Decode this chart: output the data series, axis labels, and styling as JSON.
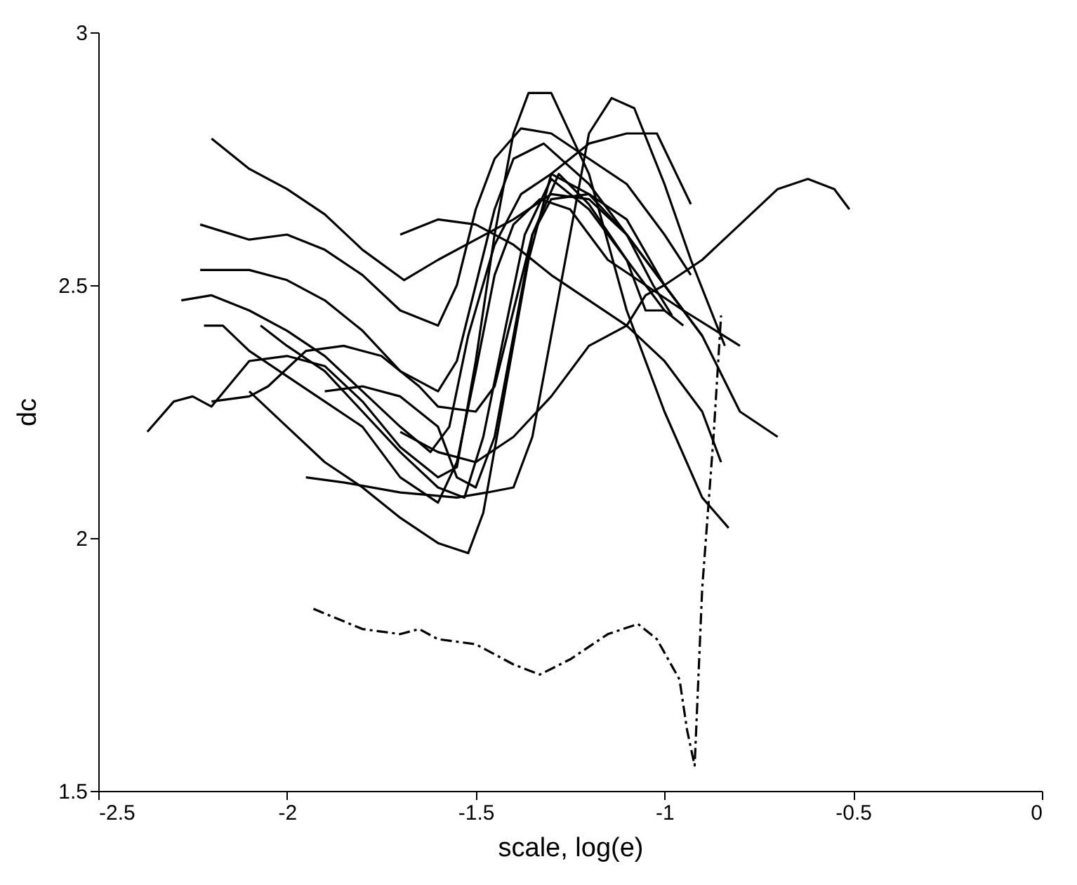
{
  "chart_data": {
    "type": "line",
    "xlabel": "scale, log(e)",
    "ylabel": "dc",
    "xlim": [
      -2.5,
      0
    ],
    "xticks": [
      -2.5,
      -2,
      -1.5,
      -1,
      -0.5,
      0
    ],
    "ylim": [
      1.5,
      3
    ],
    "yticks": [
      1.5,
      2,
      2.5,
      3
    ],
    "series": [
      {
        "color": "#000000",
        "x": [
          -2.2,
          -2.1,
          -2.0,
          -1.9,
          -1.8,
          -1.69,
          -1.6,
          -1.5,
          -1.4,
          -1.3,
          -1.2,
          -1.1,
          -1.03,
          -0.98
        ],
        "values": [
          2.79,
          2.73,
          2.69,
          2.64,
          2.57,
          2.51,
          2.55,
          2.59,
          2.63,
          2.68,
          2.67,
          2.6,
          2.5,
          2.44
        ]
      },
      {
        "color": "#000000",
        "x": [
          -2.23,
          -2.1,
          -2.0,
          -1.9,
          -1.8,
          -1.7,
          -1.6,
          -1.55,
          -1.5,
          -1.45,
          -1.38,
          -1.3,
          -1.2,
          -1.1,
          -1.0,
          -0.93
        ],
        "values": [
          2.62,
          2.59,
          2.6,
          2.57,
          2.52,
          2.45,
          2.42,
          2.5,
          2.65,
          2.75,
          2.81,
          2.8,
          2.75,
          2.7,
          2.6,
          2.52
        ]
      },
      {
        "color": "#000000",
        "x": [
          -2.23,
          -2.1,
          -2.0,
          -1.9,
          -1.8,
          -1.7,
          -1.6,
          -1.55,
          -1.5,
          -1.45,
          -1.4,
          -1.32,
          -1.2,
          -1.1,
          -1.0,
          -0.9,
          -0.8,
          -0.7
        ],
        "values": [
          2.53,
          2.53,
          2.51,
          2.47,
          2.41,
          2.33,
          2.29,
          2.35,
          2.5,
          2.65,
          2.75,
          2.78,
          2.7,
          2.6,
          2.5,
          2.4,
          2.25,
          2.2
        ]
      },
      {
        "color": "#000000",
        "x": [
          -2.28,
          -2.2,
          -2.1,
          -2.0,
          -1.9,
          -1.8,
          -1.7,
          -1.62,
          -1.57,
          -1.52,
          -1.45,
          -1.38,
          -1.3,
          -1.2,
          -1.1,
          -1.0,
          -0.95
        ],
        "values": [
          2.47,
          2.48,
          2.45,
          2.41,
          2.36,
          2.29,
          2.22,
          2.17,
          2.22,
          2.4,
          2.58,
          2.68,
          2.72,
          2.68,
          2.6,
          2.5,
          2.45
        ]
      },
      {
        "color": "#000000",
        "x": [
          -2.22,
          -2.17,
          -2.1,
          -2.0,
          -1.9,
          -1.8,
          -1.7,
          -1.6,
          -1.55,
          -1.5,
          -1.45,
          -1.4,
          -1.33,
          -1.25,
          -1.15,
          -1.05,
          -0.95,
          -0.8
        ],
        "values": [
          2.42,
          2.42,
          2.37,
          2.32,
          2.27,
          2.22,
          2.12,
          2.07,
          2.15,
          2.33,
          2.52,
          2.62,
          2.67,
          2.65,
          2.55,
          2.5,
          2.45,
          2.38
        ]
      },
      {
        "color": "#000000",
        "x": [
          -2.07,
          -2.0,
          -1.9,
          -1.8,
          -1.7,
          -1.6,
          -1.53,
          -1.48,
          -1.42,
          -1.37,
          -1.3,
          -1.2,
          -1.1,
          -1.0,
          -0.95
        ],
        "values": [
          2.42,
          2.38,
          2.33,
          2.25,
          2.17,
          2.1,
          2.08,
          2.2,
          2.42,
          2.6,
          2.71,
          2.65,
          2.55,
          2.45,
          2.42
        ]
      },
      {
        "color": "#000000",
        "x": [
          -2.37,
          -2.3,
          -2.25,
          -2.2,
          -2.1,
          -2.0,
          -1.9,
          -1.8,
          -1.7,
          -1.6,
          -1.55,
          -1.5,
          -1.45,
          -1.4,
          -1.36,
          -1.3,
          -1.2,
          -1.1,
          -1.0,
          -0.9,
          -0.83
        ],
        "values": [
          2.21,
          2.27,
          2.28,
          2.26,
          2.35,
          2.36,
          2.34,
          2.27,
          2.18,
          2.12,
          2.14,
          2.35,
          2.6,
          2.8,
          2.88,
          2.88,
          2.72,
          2.45,
          2.25,
          2.08,
          2.02
        ]
      },
      {
        "color": "#000000",
        "x": [
          -2.2,
          -2.1,
          -2.05,
          -1.95,
          -1.85,
          -1.75,
          -1.65,
          -1.6,
          -1.5,
          -1.45,
          -1.4,
          -1.35,
          -1.3,
          -1.2,
          -1.1,
          -1.0,
          -0.9
        ],
        "values": [
          2.27,
          2.28,
          2.3,
          2.37,
          2.38,
          2.36,
          2.3,
          2.26,
          2.25,
          2.3,
          2.45,
          2.6,
          2.67,
          2.68,
          2.63,
          2.5,
          2.4
        ]
      },
      {
        "color": "#000000",
        "x": [
          -2.1,
          -2.0,
          -1.9,
          -1.8,
          -1.7,
          -1.6,
          -1.52,
          -1.48,
          -1.42,
          -1.36,
          -1.3,
          -1.2,
          -1.1,
          -1.02,
          -0.93
        ],
        "values": [
          2.29,
          2.22,
          2.15,
          2.1,
          2.04,
          1.99,
          1.97,
          2.05,
          2.3,
          2.55,
          2.72,
          2.78,
          2.8,
          2.8,
          2.66
        ]
      },
      {
        "color": "#000000",
        "x": [
          -1.95,
          -1.85,
          -1.7,
          -1.55,
          -1.47,
          -1.4,
          -1.35,
          -1.3,
          -1.25,
          -1.2,
          -1.14,
          -1.08,
          -1.0,
          -0.93,
          -0.84
        ],
        "values": [
          2.12,
          2.11,
          2.09,
          2.08,
          2.09,
          2.1,
          2.2,
          2.4,
          2.6,
          2.8,
          2.87,
          2.85,
          2.7,
          2.55,
          2.38
        ]
      },
      {
        "color": "#000000",
        "x": [
          -1.7,
          -1.6,
          -1.5,
          -1.4,
          -1.3,
          -1.2,
          -1.1,
          -1.0,
          -0.9,
          -0.85
        ],
        "values": [
          2.6,
          2.63,
          2.62,
          2.58,
          2.52,
          2.47,
          2.42,
          2.35,
          2.25,
          2.15
        ]
      },
      {
        "color": "#000000",
        "x": [
          -1.7,
          -1.6,
          -1.5,
          -1.4,
          -1.3,
          -1.2,
          -1.1,
          -1.05,
          -1.0,
          -0.9,
          -0.8,
          -0.7,
          -0.62,
          -0.55,
          -0.51
        ],
        "values": [
          2.21,
          2.17,
          2.15,
          2.2,
          2.28,
          2.38,
          2.42,
          2.48,
          2.5,
          2.55,
          2.62,
          2.69,
          2.71,
          2.69,
          2.65
        ]
      },
      {
        "color": "#000000",
        "x": [
          -1.9,
          -1.8,
          -1.7,
          -1.6,
          -1.55,
          -1.5,
          -1.45,
          -1.4,
          -1.35,
          -1.28,
          -1.2,
          -1.1,
          -1.05,
          -1.0
        ],
        "values": [
          2.29,
          2.3,
          2.28,
          2.22,
          2.12,
          2.1,
          2.2,
          2.4,
          2.6,
          2.72,
          2.66,
          2.55,
          2.45,
          2.45
        ]
      },
      {
        "color": "#000000",
        "line_style": "dashed",
        "x": [
          -1.93,
          -1.8,
          -1.7,
          -1.65,
          -1.6,
          -1.5,
          -1.4,
          -1.33,
          -1.25,
          -1.15,
          -1.07,
          -1.02,
          -0.96,
          -0.94,
          -0.92,
          -0.9,
          -0.87,
          -0.85
        ],
        "values": [
          1.86,
          1.82,
          1.81,
          1.82,
          1.8,
          1.79,
          1.75,
          1.73,
          1.76,
          1.81,
          1.83,
          1.8,
          1.72,
          1.62,
          1.55,
          1.9,
          2.2,
          2.44
        ]
      }
    ]
  }
}
